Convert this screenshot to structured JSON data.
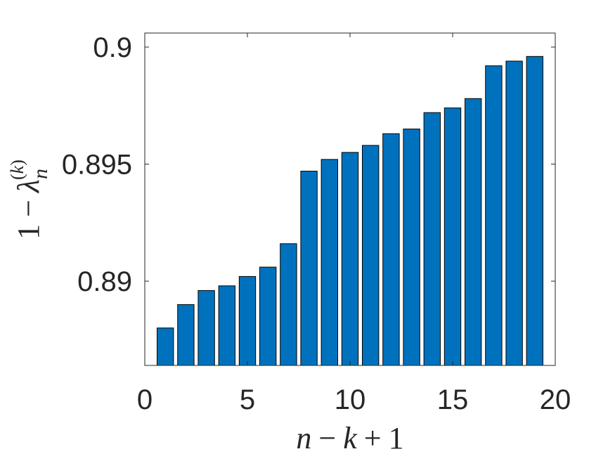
{
  "chart_data": {
    "type": "bar",
    "x": [
      1,
      2,
      3,
      4,
      5,
      6,
      7,
      8,
      9,
      10,
      11,
      12,
      13,
      14,
      15,
      16,
      17,
      18,
      19
    ],
    "values": [
      0.888,
      0.889,
      0.8896,
      0.8898,
      0.8902,
      0.8906,
      0.8916,
      0.8947,
      0.8952,
      0.8955,
      0.8958,
      0.8963,
      0.8965,
      0.8972,
      0.8974,
      0.8978,
      0.8992,
      0.8994,
      0.8996
    ],
    "xlabel": "n − k + 1",
    "ylabel": "1 − λn(k)",
    "xlim": [
      0,
      20
    ],
    "ylim": [
      0.8864,
      0.9006
    ],
    "xticks": [
      0,
      5,
      10,
      15,
      20
    ],
    "xtick_labels": [
      "0",
      "5",
      "10",
      "15",
      "20"
    ],
    "yticks": [
      0.89,
      0.895,
      0.9
    ],
    "ytick_labels": [
      "0.89",
      "0.895",
      "0.9"
    ],
    "bar_color": "#0072BD",
    "bar_edge_color": "#000000",
    "grid": false,
    "box": true
  }
}
